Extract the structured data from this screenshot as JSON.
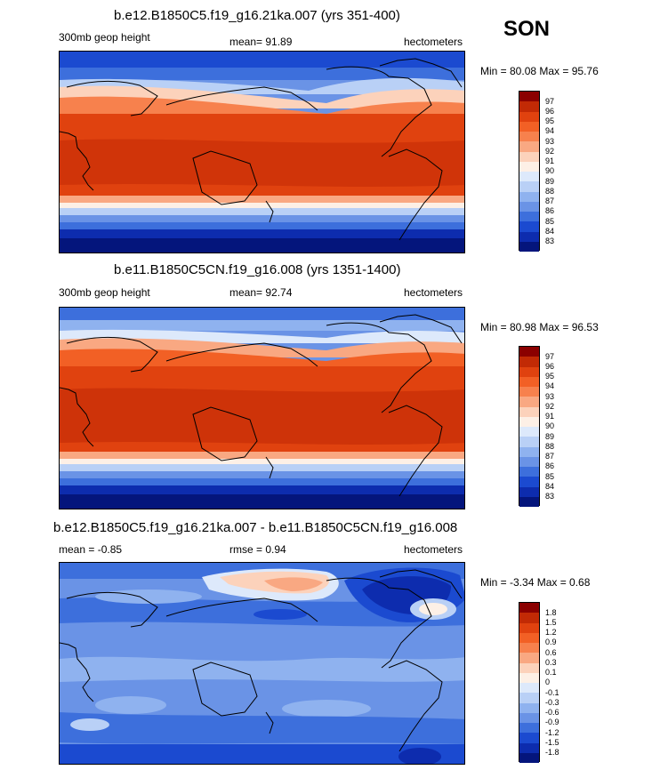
{
  "season": "SON",
  "panels": [
    {
      "title": "b.e12.B1850C5.f19_g16.21ka.007 (yrs 351-400)",
      "left_label": "300mb geop height",
      "stat": "mean=  91.89",
      "units": "hectometers",
      "minmax": "Min =  80.08 Max =  95.76",
      "legend_labels": [
        "97",
        "96",
        "95",
        "94",
        "93",
        "92",
        "91",
        "90",
        "89",
        "88",
        "87",
        "86",
        "85",
        "84",
        "83"
      ]
    },
    {
      "title": "b.e11.B1850C5CN.f19_g16.008 (yrs 1351-1400)",
      "left_label": "300mb geop height",
      "stat": "mean=  92.74",
      "units": "hectometers",
      "minmax": "Min =  80.98 Max =  96.53",
      "legend_labels": [
        "97",
        "96",
        "95",
        "94",
        "93",
        "92",
        "91",
        "90",
        "89",
        "88",
        "87",
        "86",
        "85",
        "84",
        "83"
      ]
    },
    {
      "title": "b.e12.B1850C5.f19_g16.21ka.007 - b.e11.B1850C5CN.f19_g16.008",
      "left_label": "mean =  -0.85",
      "stat": "rmse =   0.94",
      "units": "hectometers",
      "minmax": "Min =  -3.34 Max =   0.68",
      "legend_labels": [
        "1.8",
        "1.5",
        "1.2",
        "0.9",
        "0.6",
        "0.3",
        "0.1",
        "0",
        "-0.1",
        "-0.3",
        "-0.6",
        "-0.9",
        "-1.2",
        "-1.5",
        "-1.8"
      ]
    }
  ],
  "colors": {
    "scale": [
      "#8b0000",
      "#c22a05",
      "#e0420f",
      "#f26025",
      "#f7814d",
      "#f9a882",
      "#fcd2bb",
      "#fdf0e6",
      "#dde9fb",
      "#b9d0f6",
      "#8fb2ef",
      "#6a93e6",
      "#3d6fdc",
      "#1b4ad0",
      "#0d2cae",
      "#04157c"
    ]
  }
}
